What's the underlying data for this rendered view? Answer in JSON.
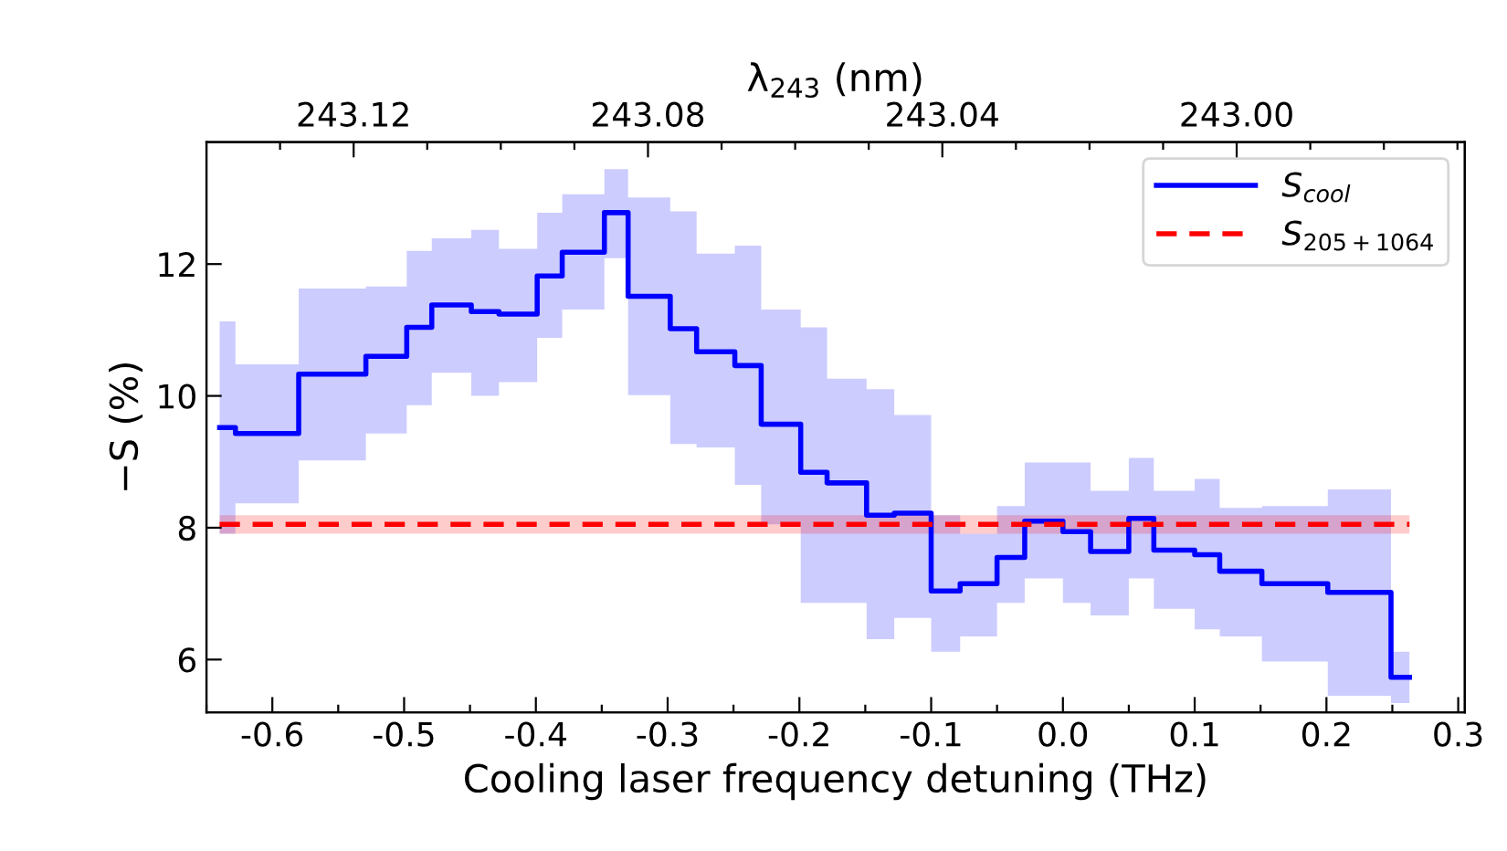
{
  "chart_data": {
    "type": "step",
    "xlabel": "Cooling laser frequency detuning (THz)",
    "ylabel": "−S (%)",
    "x2label": "λ$_{243}$ (nm)",
    "xlim": [
      -0.65,
      0.305
    ],
    "ylim": [
      5.2,
      13.85
    ],
    "x2lim": [
      243.14,
      242.969
    ],
    "xticks": [
      {
        "value": -0.65,
        "label": null
      },
      -0.6,
      {
        "value": -0.55,
        "label": null
      },
      -0.5,
      {
        "value": -0.45,
        "label": null
      },
      -0.4,
      {
        "value": -0.35,
        "label": null
      },
      -0.3,
      {
        "value": -0.25,
        "label": null
      },
      -0.2,
      {
        "value": -0.15,
        "label": null
      },
      -0.1,
      {
        "value": -0.05,
        "label": null
      },
      {
        "value": 0.0,
        "label": "0.0"
      },
      {
        "value": 0.05,
        "label": null
      },
      0.1,
      {
        "value": 0.15,
        "label": null
      },
      0.2,
      {
        "value": 0.25,
        "label": null
      },
      0.3
    ],
    "yticks": [
      6,
      8,
      10,
      12
    ],
    "x2ticks": [
      {
        "value": 243.13,
        "label": null
      },
      243.12,
      {
        "value": 243.11,
        "label": null
      },
      {
        "value": 243.1,
        "label": null
      },
      {
        "value": 243.09,
        "label": null
      },
      243.08,
      {
        "value": 243.07,
        "label": null
      },
      {
        "value": 243.06,
        "label": null
      },
      {
        "value": 243.05,
        "label": null
      },
      243.04,
      {
        "value": 243.03,
        "label": null
      },
      {
        "value": 243.02,
        "label": null
      },
      {
        "value": 243.01,
        "label": null
      },
      {
        "value": 243.0,
        "label": "243.00"
      },
      {
        "value": 242.99,
        "label": null
      },
      {
        "value": 242.98,
        "label": null
      },
      {
        "value": 242.97,
        "label": null
      }
    ],
    "legend": "top right",
    "grid": false,
    "series": [
      {
        "name": "S$_{cool}$",
        "color": "#0000ff",
        "line_style": "solid",
        "x": [
          -0.64,
          -0.628,
          -0.58,
          -0.529,
          -0.498,
          -0.479,
          -0.449,
          -0.428,
          -0.399,
          -0.38,
          -0.348,
          -0.33,
          -0.298,
          -0.278,
          -0.249,
          -0.229,
          -0.199,
          -0.179,
          -0.149,
          -0.128,
          -0.1,
          -0.078,
          -0.05,
          -0.029,
          0.0,
          0.021,
          0.05,
          0.069,
          0.1,
          0.119,
          0.151,
          0.201,
          0.249,
          0.263
        ],
        "values": [
          9.52,
          9.43,
          10.33,
          10.6,
          11.04,
          11.38,
          11.28,
          11.24,
          11.82,
          12.18,
          12.78,
          11.51,
          11.02,
          10.67,
          10.46,
          9.57,
          8.84,
          8.68,
          8.19,
          8.22,
          7.04,
          7.15,
          7.55,
          8.1,
          7.94,
          7.64,
          8.14,
          7.66,
          7.59,
          7.34,
          7.15,
          7.02,
          5.73,
          5.73
        ],
        "lower": [
          7.91,
          8.37,
          9.02,
          9.43,
          9.86,
          10.35,
          10.0,
          10.21,
          10.88,
          11.31,
          12.09,
          10.01,
          9.27,
          9.22,
          8.65,
          8.05,
          6.86,
          6.86,
          6.31,
          6.63,
          6.12,
          6.35,
          6.86,
          7.23,
          6.86,
          6.67,
          7.23,
          6.77,
          6.46,
          6.35,
          5.97,
          5.45,
          5.34,
          5.34
        ],
        "upper": [
          11.13,
          10.48,
          11.63,
          11.66,
          12.2,
          12.39,
          12.52,
          12.23,
          12.78,
          13.06,
          13.44,
          13.01,
          12.8,
          12.16,
          12.28,
          11.31,
          11.04,
          10.26,
          10.1,
          9.71,
          8.19,
          7.91,
          8.33,
          8.99,
          8.99,
          8.56,
          9.06,
          8.56,
          8.74,
          8.3,
          8.33,
          8.58,
          6.12,
          6.12
        ]
      },
      {
        "name": "S$_{205+1064}$",
        "color": "#ff0000",
        "line_style": "dashed",
        "x": [
          -0.64,
          0.263
        ],
        "values": [
          8.05,
          8.05
        ],
        "lower": [
          7.91,
          7.91
        ],
        "upper": [
          8.19,
          8.19
        ]
      }
    ]
  }
}
